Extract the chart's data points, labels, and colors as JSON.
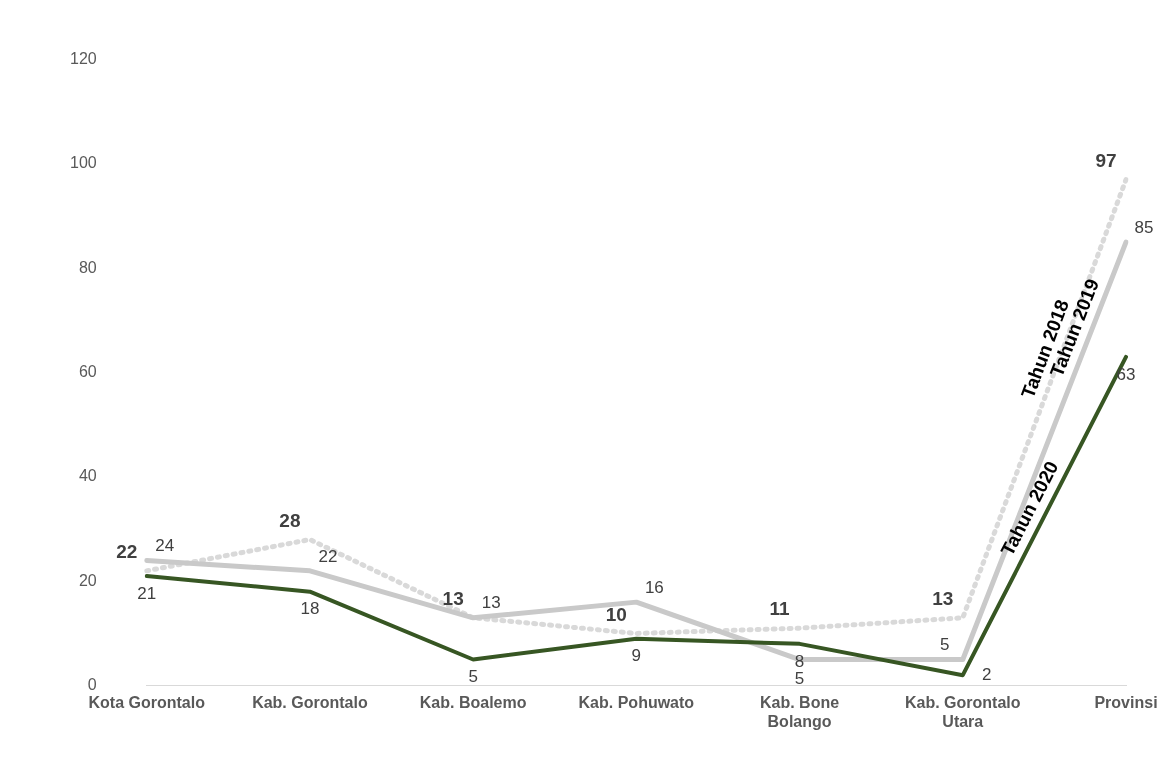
{
  "chart_data": {
    "type": "line",
    "categories": [
      "Kota Gorontalo",
      "Kab. Gorontalo",
      "Kab. Boalemo",
      "Kab. Pohuwato",
      "Kab. Bone Bolango",
      "Kab. Gorontalo Utara",
      "Provinsi"
    ],
    "series": [
      {
        "name": "Tahun 2018",
        "color": "#d9d9d9",
        "line_style": "dotted",
        "values": [
          22,
          28,
          13,
          10,
          11,
          13,
          97
        ]
      },
      {
        "name": "Tahun 2019",
        "color": "#c9c9c9",
        "line_style": "solid",
        "values": [
          24,
          22,
          13,
          16,
          5,
          5,
          85
        ]
      },
      {
        "name": "Tahun 2020",
        "color": "#375623",
        "line_style": "solid",
        "values": [
          21,
          18,
          5,
          9,
          8,
          2,
          63
        ]
      }
    ],
    "ylim": [
      0,
      120
    ],
    "yticks": [
      0,
      20,
      40,
      60,
      80,
      100,
      120
    ],
    "grid": false,
    "legend": false,
    "marker": "none",
    "data_labels": true
  }
}
